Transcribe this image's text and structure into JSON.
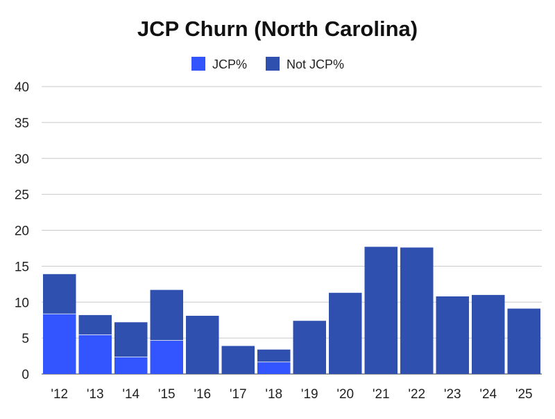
{
  "chart_data": {
    "type": "bar",
    "stacked": true,
    "title": "JCP Churn (North Carolina)",
    "xlabel": "",
    "ylabel": "",
    "categories": [
      "'12",
      "'13",
      "'14",
      "'15",
      "'16",
      "'17",
      "'18",
      "'19",
      "'20",
      "'21",
      "'22",
      "'23",
      "'24",
      "'25"
    ],
    "series": [
      {
        "name": "JCP%",
        "color": "#3355ff",
        "values": [
          8.4,
          5.5,
          2.4,
          4.7,
          0,
          0,
          1.7,
          0,
          0,
          0,
          0,
          0,
          0,
          0
        ]
      },
      {
        "name": "Not JCP%",
        "color": "#3050b0",
        "values": [
          5.5,
          2.7,
          4.8,
          7.0,
          8.1,
          3.9,
          1.7,
          7.4,
          11.3,
          17.7,
          17.6,
          10.8,
          11.0,
          9.1
        ]
      }
    ],
    "ylim": [
      0,
      40
    ],
    "yticks": [
      0,
      5,
      10,
      15,
      20,
      25,
      30,
      35,
      40
    ],
    "grid": true,
    "legend_position": "top-center"
  }
}
